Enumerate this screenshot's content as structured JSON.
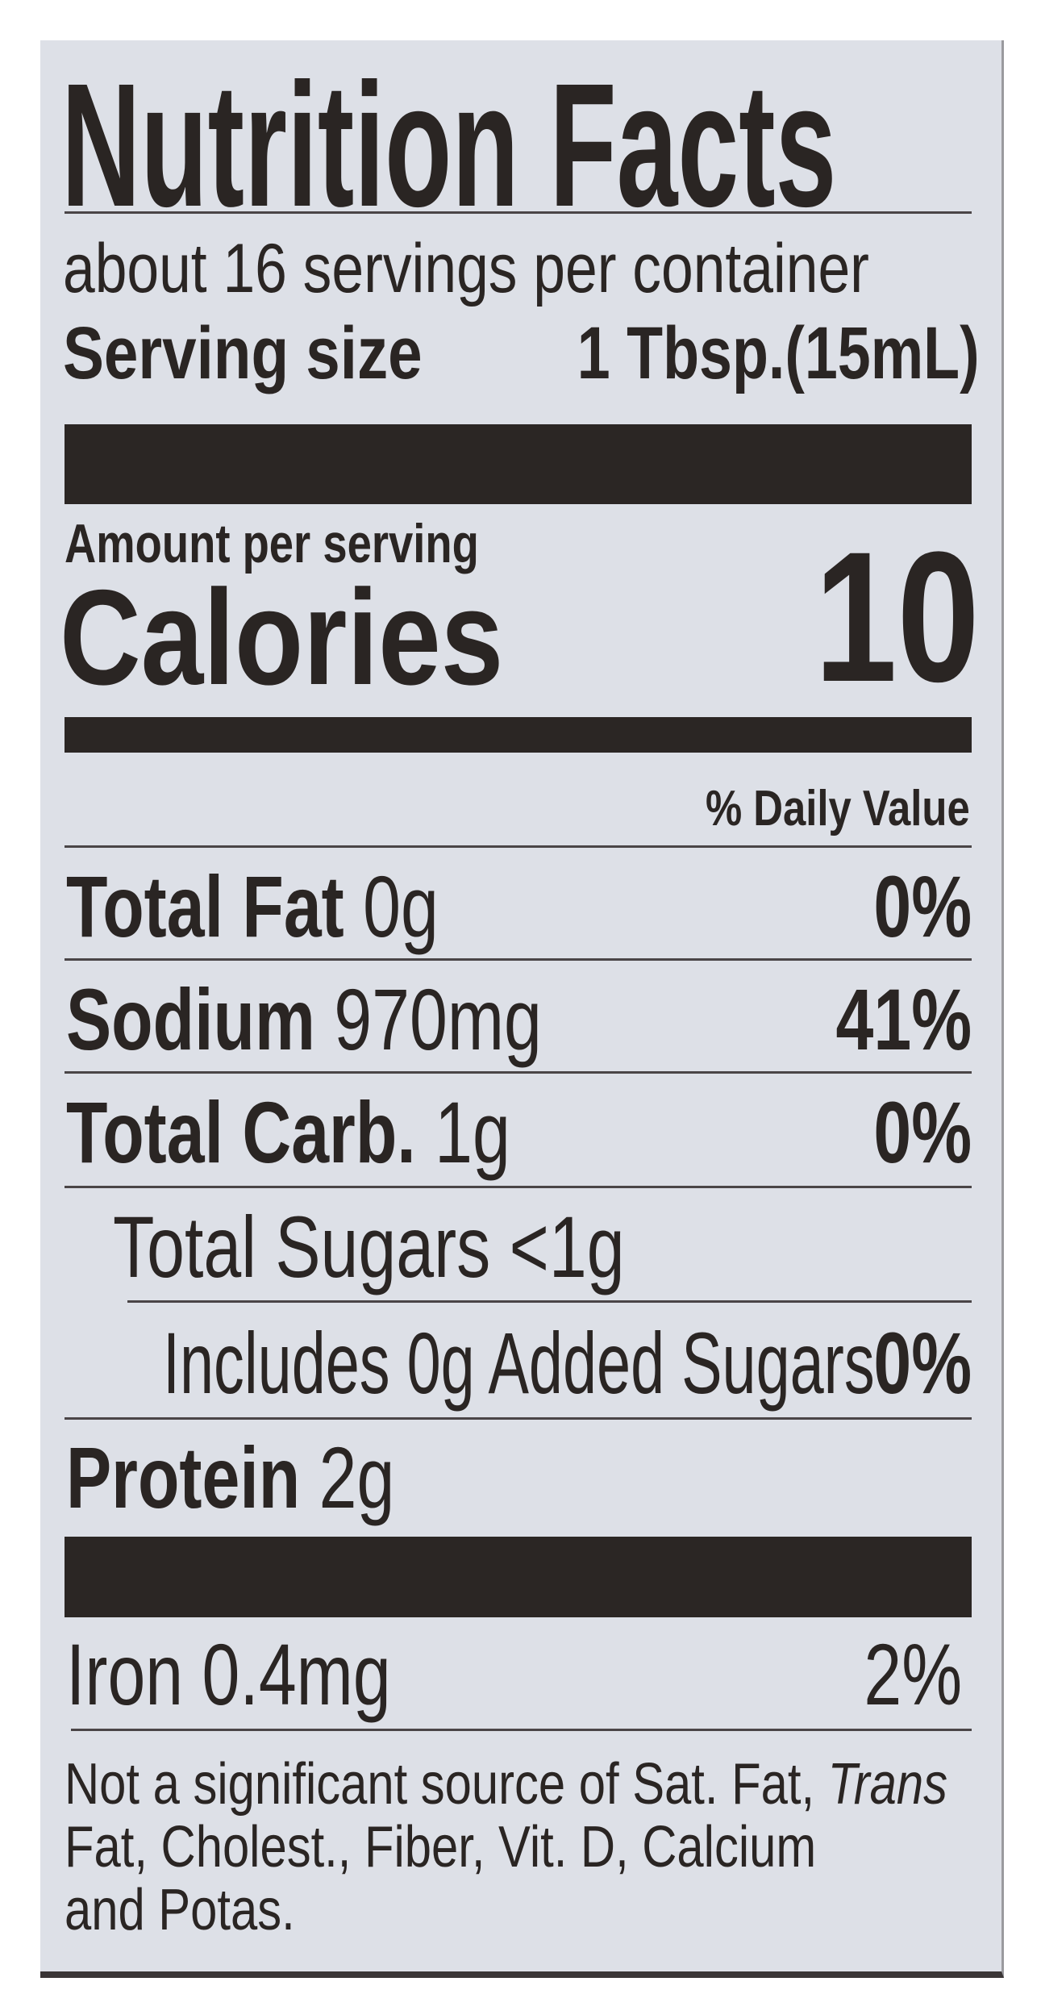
{
  "label": {
    "title": "Nutrition Facts",
    "servings_per_container": "about 16 servings per container",
    "serving_size_label": "Serving size",
    "serving_size_value": "1 Tbsp.(15mL)",
    "amount_per_serving": "Amount per serving",
    "calories_label": "Calories",
    "calories_value": "10",
    "daily_value_header": "% Daily Value",
    "nutrients": [
      {
        "name": "Total Fat",
        "amount": "0g",
        "dv": "0%"
      },
      {
        "name": "Sodium",
        "amount": "970mg",
        "dv": "41%"
      },
      {
        "name": "Total Carb.",
        "amount": "1g",
        "dv": "0%"
      },
      {
        "name": "Total Sugars <1g",
        "amount": "",
        "dv": ""
      },
      {
        "name": "Includes 0g Added Sugars",
        "amount": "",
        "dv": "0%"
      },
      {
        "name": "Protein",
        "amount": "2g",
        "dv": ""
      }
    ],
    "vitamins": [
      {
        "name": "Iron 0.4mg",
        "dv": "2%"
      }
    ],
    "footnote": {
      "line1_a": "Not a significant source of Sat. Fat, ",
      "line1_italic": "Trans",
      "line2": "Fat, Cholest., Fiber, Vit. D, Calcium",
      "line3": "and Potas."
    }
  },
  "colors": {
    "background": "#dde0e7",
    "ink": "#2a2523"
  }
}
